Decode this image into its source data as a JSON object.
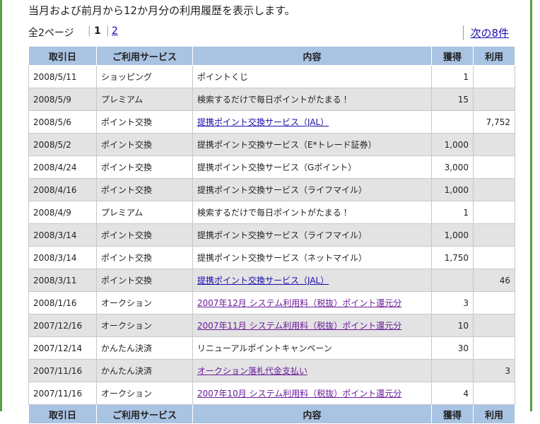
{
  "intro": "当月および前月から12か月分の利用履歴を表示します。",
  "pagination": {
    "total": "全2ページ",
    "pages": [
      "1",
      "2"
    ],
    "next": "次の8件"
  },
  "table": {
    "headers": [
      "取引日",
      "ご利用サービス",
      "内容",
      "獲得",
      "利用"
    ],
    "rows": [
      {
        "date": "2008/5/11",
        "service": "ショッピング",
        "content": "ポイントくじ",
        "earned": "1"
      },
      {
        "date": "2008/5/9",
        "service": "プレミアム",
        "content": "検索するだけで毎日ポイントがたまる！",
        "earned": "15"
      },
      {
        "date": "2008/5/6",
        "service": "ポイント交換",
        "content": "提携ポイント交換サービス（JAL）",
        "used": "7,752"
      },
      {
        "date": "2008/5/2",
        "service": "ポイント交換",
        "content": "提携ポイント交換サービス（E*トレード証券）",
        "earned": "1,000"
      },
      {
        "date": "2008/4/24",
        "service": "ポイント交換",
        "content": "提携ポイント交換サービス（Gポイント）",
        "earned": "3,000"
      },
      {
        "date": "2008/4/16",
        "service": "ポイント交換",
        "content": "提携ポイント交換サービス（ライフマイル）",
        "earned": "1,000"
      },
      {
        "date": "2008/4/9",
        "service": "プレミアム",
        "content": "検索するだけで毎日ポイントがたまる！",
        "earned": "1"
      },
      {
        "date": "2008/3/14",
        "service": "ポイント交換",
        "content": "提携ポイント交換サービス（ライフマイル）",
        "earned": "1,000"
      },
      {
        "date": "2008/3/14",
        "service": "ポイント交換",
        "content": "提携ポイント交換サービス（ネットマイル）",
        "earned": "1,750"
      },
      {
        "date": "2008/3/11",
        "service": "ポイント交換",
        "content": "提携ポイント交換サービス（JAL）",
        "used": "46"
      },
      {
        "date": "2008/1/16",
        "service": "オークション",
        "content": "2007年12月 システム利用料（税抜）ポイント還元分",
        "earned": "3"
      },
      {
        "date": "2007/12/16",
        "service": "オークション",
        "content": "2007年11月 システム利用料（税抜）ポイント還元分",
        "earned": "10"
      },
      {
        "date": "2007/12/14",
        "service": "かんたん決済",
        "content": "リニューアルポイントキャンペーン",
        "earned": "30"
      },
      {
        "date": "2007/11/16",
        "service": "かんたん決済",
        "content": "オークション落札代金支払い",
        "used": "3"
      },
      {
        "date": "2007/11/16",
        "service": "オークション",
        "content": "2007年10月 システム利用料（税抜）ポイント還元分",
        "earned": "4"
      }
    ]
  }
}
